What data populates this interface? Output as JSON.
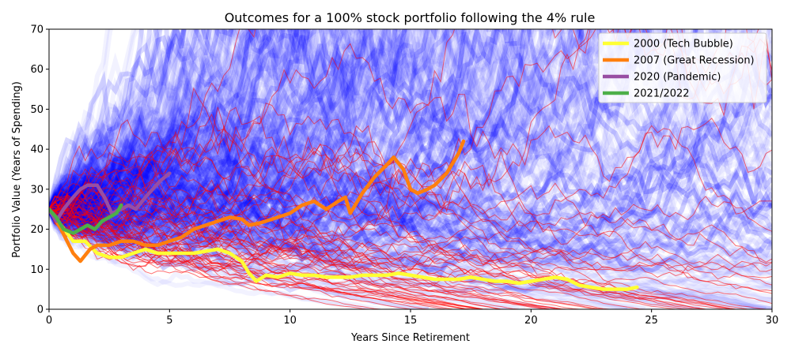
{
  "chart_data": {
    "type": "line",
    "title": "Outcomes for a 100% stock  portfolio following the 4% rule",
    "xlabel": "Years Since Retirement",
    "ylabel": "Portfolio Value (Years of Spending)",
    "xlim": [
      0,
      30
    ],
    "ylim": [
      0,
      70
    ],
    "xticks": [
      0,
      5,
      10,
      15,
      20,
      25,
      30
    ],
    "yticks": [
      0,
      10,
      20,
      30,
      40,
      50,
      60,
      70
    ],
    "grid": false,
    "legend_position": "top-right",
    "background_simulations": {
      "successful_color": "#0000ff",
      "failed_color": "#ff0000",
      "start_value": 25
    },
    "series": [
      {
        "name": "2000 (Tech Bubble)",
        "color": "#ffff33",
        "x": [
          0,
          0.5,
          1,
          1.5,
          2,
          2.5,
          3,
          3.5,
          4,
          4.5,
          5,
          5.5,
          6,
          6.5,
          7,
          7.5,
          8,
          8.3,
          8.6,
          9,
          9.5,
          10,
          10.5,
          11,
          11.5,
          12,
          12.5,
          13,
          13.5,
          14,
          14.5,
          15,
          15.5,
          16,
          16.5,
          17,
          17.5,
          18,
          18.5,
          19,
          19.5,
          20,
          20.5,
          21,
          21.5,
          22,
          22.5,
          23,
          23.5,
          24,
          24.4
        ],
        "y": [
          25,
          21,
          17,
          17,
          14,
          13,
          13,
          14,
          15,
          14,
          14,
          14,
          14,
          14.5,
          15,
          14,
          12,
          9,
          7,
          8.5,
          8,
          9,
          8.5,
          8.5,
          8,
          8,
          8,
          8.5,
          8.5,
          8.5,
          9,
          8.5,
          8,
          7.5,
          7.5,
          7.5,
          8,
          7.5,
          7,
          7,
          6.5,
          7,
          7.5,
          8,
          7.5,
          6,
          5.5,
          5,
          5,
          5,
          5.5
        ]
      },
      {
        "name": "2007 (Great Recession)",
        "color": "#ff7f0e",
        "x": [
          0,
          0.5,
          1,
          1.3,
          1.7,
          2,
          2.5,
          3,
          3.5,
          4,
          4.5,
          5,
          5.5,
          6,
          6.5,
          7,
          7.5,
          8,
          8.3,
          8.7,
          9,
          9.5,
          10,
          10.5,
          11,
          11.5,
          12,
          12.3,
          12.5,
          13,
          13.5,
          14,
          14.3,
          14.7,
          15,
          15.3,
          15.7,
          16,
          16.5,
          17,
          17.2
        ],
        "y": [
          25,
          20,
          14,
          12,
          15,
          16,
          16,
          17,
          17,
          16,
          16,
          17,
          18,
          20,
          21,
          22,
          23,
          22.5,
          21,
          21.5,
          22,
          23,
          24,
          26,
          27,
          25,
          27,
          28,
          24,
          29,
          33,
          36,
          38,
          35,
          30,
          29,
          30,
          31,
          34,
          39,
          42
        ]
      },
      {
        "name": "2020 (Pandemic)",
        "color": "#984ea3",
        "x": [
          0,
          0.3,
          0.6,
          1,
          1.3,
          1.6,
          2,
          2.3,
          2.6,
          3,
          3.3,
          3.6,
          4,
          4.3,
          4.6,
          5
        ],
        "y": [
          25,
          22,
          25,
          28,
          30,
          31,
          31,
          28,
          24,
          25,
          26,
          25,
          28,
          30,
          32,
          34
        ]
      },
      {
        "name": "2021/2022",
        "color": "#4daf4a",
        "x": [
          0,
          0.3,
          0.6,
          1,
          1.3,
          1.6,
          1.9,
          2.2,
          2.5,
          2.8,
          3
        ],
        "y": [
          25,
          23,
          20,
          19,
          20,
          21,
          20,
          22,
          23,
          24,
          26
        ]
      }
    ]
  }
}
